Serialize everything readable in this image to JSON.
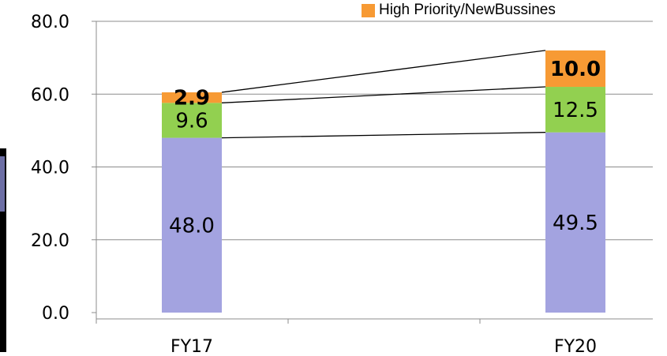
{
  "chart_data": {
    "type": "bar",
    "stacked": true,
    "categories": [
      "FY17",
      "FY20"
    ],
    "ylim": [
      0,
      80
    ],
    "y_ticks": [
      "0.0",
      "20.0",
      "40.0",
      "60.0",
      "80.0"
    ],
    "grid": "horizontal",
    "legend_position": "top-right",
    "series": [
      {
        "values": [
          48.0,
          49.5
        ],
        "labels": [
          "48.0",
          "49.5"
        ],
        "color": "#a3a3e0",
        "bold_labels": false
      },
      {
        "values": [
          9.6,
          12.5
        ],
        "labels": [
          "9.6",
          "12.5"
        ],
        "color": "#92d050",
        "bold_labels": false
      },
      {
        "name": "High Priority/NewBussines",
        "values": [
          2.9,
          10.0
        ],
        "labels": [
          "2.9",
          "10.0"
        ],
        "color": "#f79a34",
        "bold_labels": true
      }
    ],
    "connector_lines": true
  }
}
